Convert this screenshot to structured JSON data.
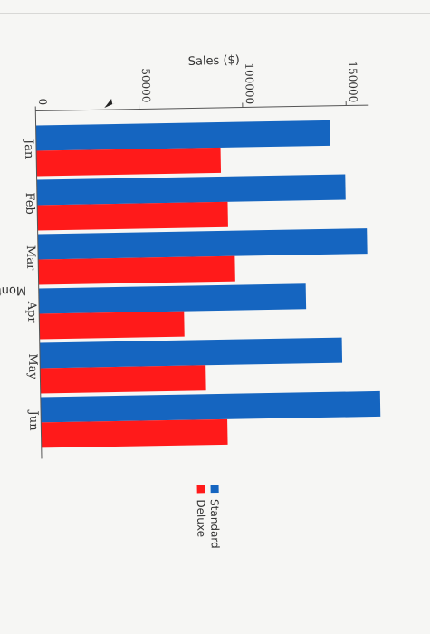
{
  "chart_data": {
    "type": "bar",
    "orientation": "horizontal",
    "categories": [
      "Jan",
      "Feb",
      "Mar",
      "Apr",
      "May",
      "Jun"
    ],
    "series": [
      {
        "name": "Standard",
        "color": "#1565c0",
        "values": [
          142000,
          149000,
          159000,
          129000,
          146000,
          164000
        ]
      },
      {
        "name": "Deluxe",
        "color": "#ff1a1a",
        "values": [
          89000,
          92000,
          95000,
          70000,
          80000,
          90000
        ]
      }
    ],
    "xlabel": "Sales ($)",
    "ylabel": "Month",
    "xlim": [
      0,
      170000
    ],
    "xticks": [
      0,
      50000,
      100000,
      150000
    ],
    "grid": false,
    "legend_position": "bottom-right"
  }
}
